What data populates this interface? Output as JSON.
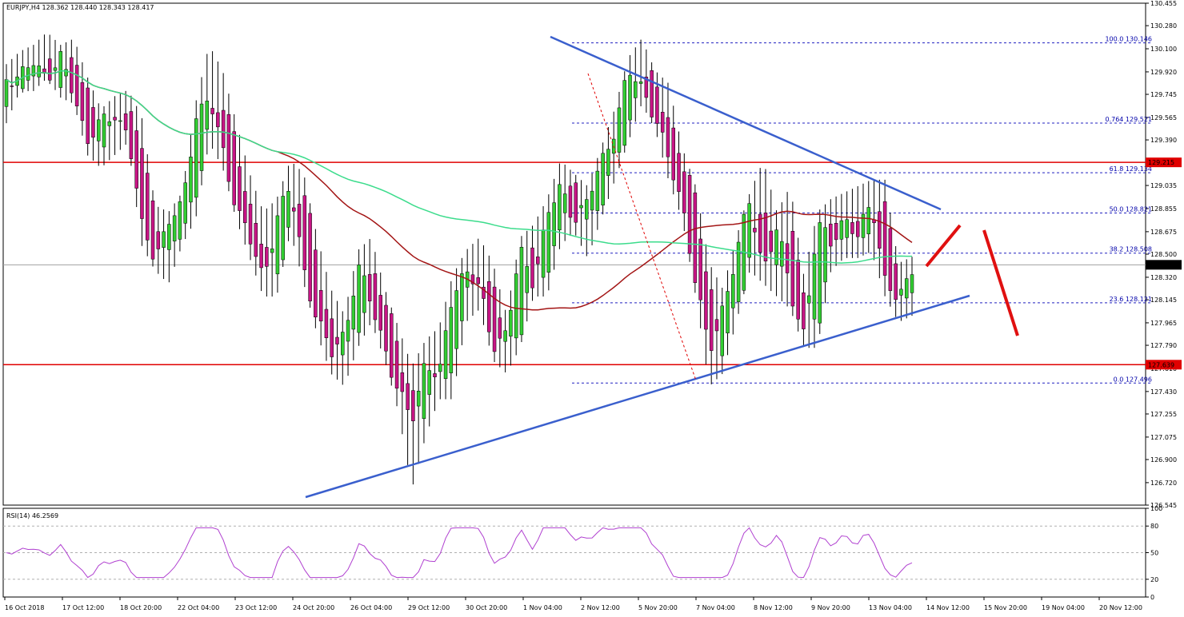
{
  "header": {
    "symbol_info": "EURJPY,H4  128.362 128.440 128.343 128.417"
  },
  "colors": {
    "bull": "#32cd32",
    "bear": "#c71585",
    "ma_red": "#a31515",
    "ma_green": "#3cdc8c",
    "trend_blue": "#3a5fcd",
    "hline_red": "#e00000",
    "fib_blue": "#2020c0",
    "rsi_line": "#b040d0",
    "arrow_red": "#e01010"
  },
  "price_axis": {
    "ticks": [
      "130.455",
      "130.280",
      "130.100",
      "129.920",
      "129.745",
      "129.565",
      "129.390",
      "129.215",
      "129.035",
      "128.855",
      "128.675",
      "128.500",
      "128.320",
      "128.145",
      "127.965",
      "127.790",
      "127.610",
      "127.430",
      "127.255",
      "127.075",
      "126.900",
      "126.720",
      "126.545"
    ]
  },
  "time_axis": {
    "labels": [
      "16 Oct 2018",
      "17 Oct 12:00",
      "18 Oct 20:00",
      "22 Oct 04:00",
      "23 Oct 12:00",
      "24 Oct 20:00",
      "26 Oct 04:00",
      "29 Oct 12:00",
      "30 Oct 20:00",
      "1 Nov 04:00",
      "2 Nov 12:00",
      "5 Nov 20:00",
      "7 Nov 04:00",
      "8 Nov 12:00",
      "9 Nov 20:00",
      "13 Nov 04:00",
      "14 Nov 12:00",
      "15 Nov 20:00",
      "19 Nov 04:00",
      "20 Nov 12:00"
    ]
  },
  "price_tags": {
    "current": "128.417",
    "resistance": "129.215",
    "support": "127.639"
  },
  "fib_labels": [
    {
      "label": "100.0 130.146",
      "price": 130.146
    },
    {
      "label": "0.764 129.521",
      "price": 129.521
    },
    {
      "label": "61.8 129.134",
      "price": 129.134
    },
    {
      "label": "50.0 128.821",
      "price": 128.821
    },
    {
      "label": "38.2 128.508",
      "price": 128.508
    },
    {
      "label": "23.6 128.121",
      "price": 128.121
    },
    {
      "label": "0.0 127.496",
      "price": 127.496
    }
  ],
  "rsi": {
    "title": "RSI(14) 46.2569",
    "ticks": [
      "100",
      "80",
      "50",
      "20",
      "0"
    ],
    "levels": [
      80,
      50,
      20
    ]
  },
  "chart_data": {
    "type": "candlestick",
    "title": "EURJPY,H4",
    "ylim": [
      126.545,
      130.455
    ],
    "support_lines": [
      129.215,
      127.639
    ],
    "bars_seed": [
      [
        129.6,
        129.95,
        129.55,
        129.9
      ],
      [
        129.9,
        130.05,
        129.8,
        129.85
      ],
      [
        129.85,
        130.1,
        129.8,
        130.0
      ],
      [
        129.95,
        130.2,
        129.9,
        129.9
      ],
      [
        129.9,
        130.1,
        129.75,
        130.0
      ],
      [
        130.0,
        130.15,
        129.7,
        129.75
      ],
      [
        129.75,
        129.85,
        129.3,
        129.4
      ],
      [
        129.4,
        129.6,
        129.2,
        129.5
      ],
      [
        129.5,
        129.7,
        129.3,
        129.6
      ],
      [
        129.6,
        129.75,
        129.4,
        129.45
      ],
      [
        129.45,
        129.55,
        128.6,
        128.7
      ],
      [
        128.7,
        128.85,
        128.4,
        128.5
      ],
      [
        128.5,
        128.8,
        128.3,
        128.75
      ],
      [
        128.75,
        128.95,
        128.6,
        128.85
      ],
      [
        128.85,
        129.65,
        128.8,
        129.6
      ],
      [
        129.6,
        130.1,
        129.4,
        129.7
      ],
      [
        129.7,
        129.9,
        129.2,
        129.3
      ],
      [
        129.3,
        129.5,
        128.8,
        128.9
      ],
      [
        128.9,
        129.1,
        128.5,
        128.6
      ],
      [
        128.6,
        128.8,
        128.2,
        128.3
      ],
      [
        128.3,
        128.9,
        128.2,
        128.8
      ],
      [
        128.8,
        129.2,
        128.7,
        129.0
      ],
      [
        129.0,
        129.1,
        128.3,
        128.4
      ],
      [
        128.4,
        128.6,
        127.9,
        128.0
      ],
      [
        128.0,
        128.2,
        127.6,
        127.7
      ],
      [
        127.7,
        128.0,
        127.5,
        127.9
      ],
      [
        127.9,
        128.5,
        127.8,
        128.4
      ],
      [
        128.4,
        128.6,
        128.0,
        128.1
      ],
      [
        128.1,
        128.2,
        127.7,
        127.8
      ],
      [
        127.8,
        127.9,
        127.3,
        127.4
      ],
      [
        127.4,
        127.6,
        126.7,
        127.2
      ],
      [
        127.2,
        127.8,
        127.1,
        127.7
      ],
      [
        127.7,
        127.9,
        127.4,
        127.5
      ],
      [
        127.5,
        128.3,
        127.4,
        128.2
      ],
      [
        128.2,
        128.5,
        128.0,
        128.4
      ],
      [
        128.4,
        128.6,
        128.1,
        128.2
      ],
      [
        128.2,
        128.4,
        127.7,
        127.8
      ],
      [
        127.8,
        128.0,
        127.6,
        127.9
      ],
      [
        127.9,
        128.6,
        127.8,
        128.5
      ],
      [
        128.5,
        128.7,
        128.2,
        128.3
      ],
      [
        128.3,
        128.9,
        128.2,
        128.8
      ],
      [
        128.8,
        129.2,
        128.6,
        129.0
      ],
      [
        129.0,
        129.1,
        128.7,
        128.8
      ],
      [
        128.8,
        129.0,
        128.5,
        128.9
      ],
      [
        128.9,
        129.3,
        128.8,
        129.2
      ],
      [
        129.2,
        129.6,
        129.1,
        129.5
      ],
      [
        129.5,
        130.0,
        129.4,
        129.9
      ],
      [
        129.9,
        130.15,
        129.7,
        129.8
      ],
      [
        129.8,
        129.9,
        129.5,
        129.6
      ],
      [
        129.6,
        129.8,
        129.1,
        129.2
      ],
      [
        129.2,
        129.3,
        128.8,
        128.9
      ],
      [
        128.9,
        129.0,
        128.2,
        128.3
      ],
      [
        128.3,
        128.4,
        127.5,
        127.7
      ],
      [
        127.7,
        128.2,
        127.6,
        128.1
      ],
      [
        128.1,
        128.6,
        128.0,
        128.5
      ],
      [
        128.5,
        128.95,
        128.4,
        128.9
      ],
      [
        128.9,
        129.2,
        128.3,
        128.4
      ],
      [
        128.4,
        128.8,
        128.2,
        128.7
      ],
      [
        128.7,
        129.0,
        128.1,
        128.2
      ],
      [
        128.2,
        128.3,
        127.8,
        127.9
      ],
      [
        127.9,
        128.8,
        127.8,
        128.7
      ],
      [
        128.7,
        128.9,
        128.4,
        128.6
      ],
      [
        128.6,
        128.95,
        128.5,
        128.8
      ],
      [
        128.8,
        129.0,
        128.5,
        128.6
      ],
      [
        128.6,
        129.05,
        128.55,
        128.95
      ],
      [
        128.95,
        129.05,
        128.2,
        128.3
      ],
      [
        128.3,
        128.4,
        128.0,
        128.1
      ],
      [
        128.1,
        128.45,
        128.05,
        128.42
      ]
    ]
  }
}
